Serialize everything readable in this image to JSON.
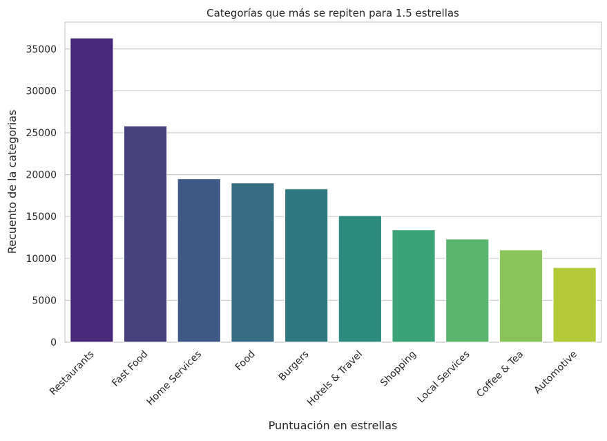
{
  "chart_data": {
    "type": "bar",
    "title": "Categorías que más se repiten para 1.5 estrellas",
    "xlabel": "Puntuación en estrellas",
    "ylabel": "Recuento de la categorias",
    "categories": [
      "Restaurants",
      "Fast Food",
      "Home Services",
      "Food",
      "Burgers",
      "Hotels & Travel",
      "Shopping",
      "Local Services",
      "Coffee & Tea",
      "Automotive"
    ],
    "values": [
      36300,
      25800,
      19500,
      19000,
      18300,
      15100,
      13400,
      12300,
      11000,
      8900
    ],
    "colors": [
      "#482878",
      "#46407c",
      "#3e5985",
      "#376d82",
      "#2e7980",
      "#2c8a7e",
      "#3ba377",
      "#5ab56e",
      "#89c359",
      "#b3c937"
    ],
    "ylim": [
      0,
      38200
    ],
    "yticks": [
      0,
      5000,
      10000,
      15000,
      20000,
      25000,
      30000,
      35000
    ],
    "grid": "horizontal"
  }
}
